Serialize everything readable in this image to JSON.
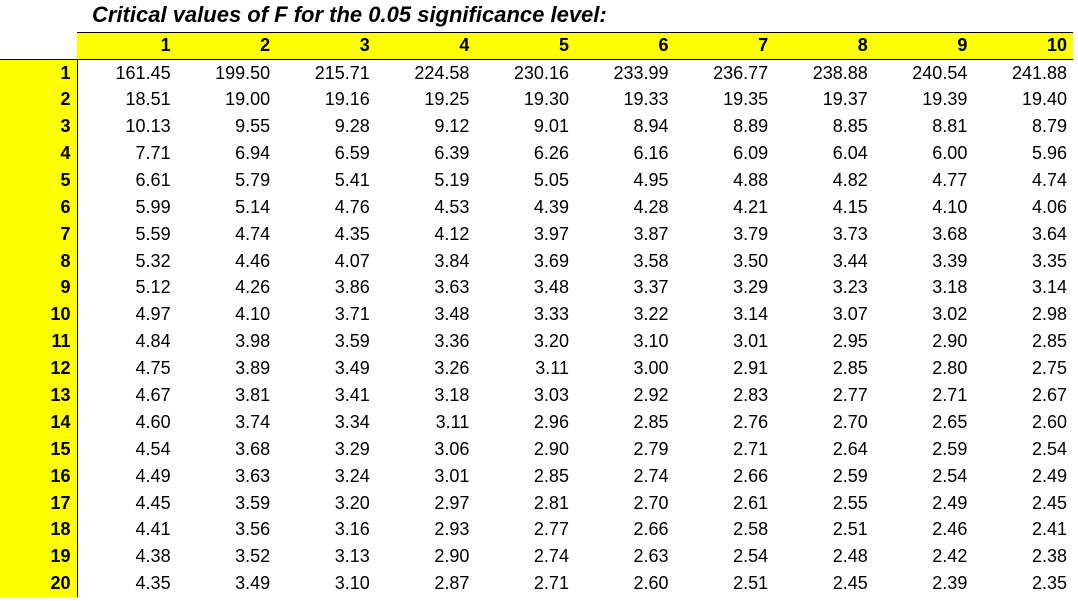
{
  "title": "Critical values of F for the 0.05 significance level:",
  "column_headers": [
    "1",
    "2",
    "3",
    "4",
    "5",
    "6",
    "7",
    "8",
    "9",
    "10"
  ],
  "rows": [
    {
      "label": "1",
      "values": [
        "161.45",
        "199.50",
        "215.71",
        "224.58",
        "230.16",
        "233.99",
        "236.77",
        "238.88",
        "240.54",
        "241.88"
      ]
    },
    {
      "label": "2",
      "values": [
        "18.51",
        "19.00",
        "19.16",
        "19.25",
        "19.30",
        "19.33",
        "19.35",
        "19.37",
        "19.39",
        "19.40"
      ]
    },
    {
      "label": "3",
      "values": [
        "10.13",
        "9.55",
        "9.28",
        "9.12",
        "9.01",
        "8.94",
        "8.89",
        "8.85",
        "8.81",
        "8.79"
      ]
    },
    {
      "label": "4",
      "values": [
        "7.71",
        "6.94",
        "6.59",
        "6.39",
        "6.26",
        "6.16",
        "6.09",
        "6.04",
        "6.00",
        "5.96"
      ]
    },
    {
      "label": "5",
      "values": [
        "6.61",
        "5.79",
        "5.41",
        "5.19",
        "5.05",
        "4.95",
        "4.88",
        "4.82",
        "4.77",
        "4.74"
      ]
    },
    {
      "label": "6",
      "values": [
        "5.99",
        "5.14",
        "4.76",
        "4.53",
        "4.39",
        "4.28",
        "4.21",
        "4.15",
        "4.10",
        "4.06"
      ]
    },
    {
      "label": "7",
      "values": [
        "5.59",
        "4.74",
        "4.35",
        "4.12",
        "3.97",
        "3.87",
        "3.79",
        "3.73",
        "3.68",
        "3.64"
      ]
    },
    {
      "label": "8",
      "values": [
        "5.32",
        "4.46",
        "4.07",
        "3.84",
        "3.69",
        "3.58",
        "3.50",
        "3.44",
        "3.39",
        "3.35"
      ]
    },
    {
      "label": "9",
      "values": [
        "5.12",
        "4.26",
        "3.86",
        "3.63",
        "3.48",
        "3.37",
        "3.29",
        "3.23",
        "3.18",
        "3.14"
      ]
    },
    {
      "label": "10",
      "values": [
        "4.97",
        "4.10",
        "3.71",
        "3.48",
        "3.33",
        "3.22",
        "3.14",
        "3.07",
        "3.02",
        "2.98"
      ]
    },
    {
      "label": "11",
      "values": [
        "4.84",
        "3.98",
        "3.59",
        "3.36",
        "3.20",
        "3.10",
        "3.01",
        "2.95",
        "2.90",
        "2.85"
      ]
    },
    {
      "label": "12",
      "values": [
        "4.75",
        "3.89",
        "3.49",
        "3.26",
        "3.11",
        "3.00",
        "2.91",
        "2.85",
        "2.80",
        "2.75"
      ]
    },
    {
      "label": "13",
      "values": [
        "4.67",
        "3.81",
        "3.41",
        "3.18",
        "3.03",
        "2.92",
        "2.83",
        "2.77",
        "2.71",
        "2.67"
      ]
    },
    {
      "label": "14",
      "values": [
        "4.60",
        "3.74",
        "3.34",
        "3.11",
        "2.96",
        "2.85",
        "2.76",
        "2.70",
        "2.65",
        "2.60"
      ]
    },
    {
      "label": "15",
      "values": [
        "4.54",
        "3.68",
        "3.29",
        "3.06",
        "2.90",
        "2.79",
        "2.71",
        "2.64",
        "2.59",
        "2.54"
      ]
    },
    {
      "label": "16",
      "values": [
        "4.49",
        "3.63",
        "3.24",
        "3.01",
        "2.85",
        "2.74",
        "2.66",
        "2.59",
        "2.54",
        "2.49"
      ]
    },
    {
      "label": "17",
      "values": [
        "4.45",
        "3.59",
        "3.20",
        "2.97",
        "2.81",
        "2.70",
        "2.61",
        "2.55",
        "2.49",
        "2.45"
      ]
    },
    {
      "label": "18",
      "values": [
        "4.41",
        "3.56",
        "3.16",
        "2.93",
        "2.77",
        "2.66",
        "2.58",
        "2.51",
        "2.46",
        "2.41"
      ]
    },
    {
      "label": "19",
      "values": [
        "4.38",
        "3.52",
        "3.13",
        "2.90",
        "2.74",
        "2.63",
        "2.54",
        "2.48",
        "2.42",
        "2.38"
      ]
    },
    {
      "label": "20",
      "values": [
        "4.35",
        "3.49",
        "3.10",
        "2.87",
        "2.71",
        "2.60",
        "2.51",
        "2.45",
        "2.39",
        "2.35"
      ]
    }
  ],
  "colors": {
    "header_fill": "#ffff00",
    "text": "#000000",
    "background": "#ffffff"
  }
}
